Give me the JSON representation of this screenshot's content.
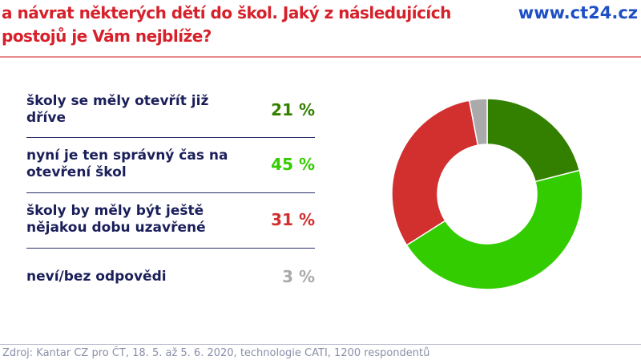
{
  "title": "a návrat některých dětí do škol. Jaký z následujících postojů je Vám nejblíže?",
  "site": "www.ct24.cz",
  "source": "Zdroj: Kantar CZ pro ČT, 18. 5. až 5. 6. 2020, technologie CATI, 1200 respondentů",
  "chart_data": {
    "type": "pie",
    "donut": true,
    "categories": [
      "školy se měly otevřít již dříve",
      "nyní je ten správný čas na otevření škol",
      "školy by měly být ještě nějakou dobu uzavřené",
      "neví/bez odpovědi"
    ],
    "values": [
      21,
      45,
      31,
      3
    ],
    "labels": [
      "21 %",
      "45 %",
      "31 %",
      "3 %"
    ],
    "colors": [
      "#338000",
      "#33cc00",
      "#d22f2f",
      "#aaaaaa"
    ]
  }
}
